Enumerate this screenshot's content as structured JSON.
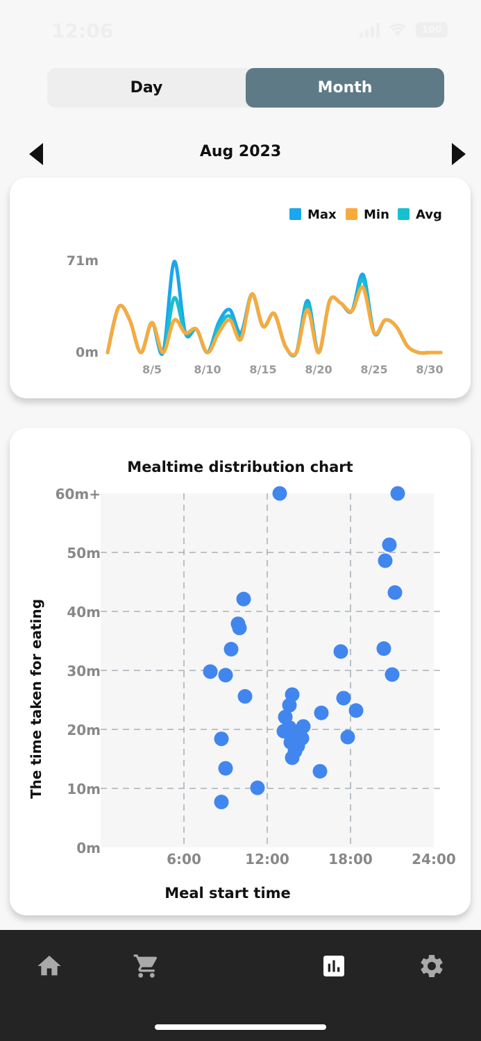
{
  "status_bar": {
    "time": "12:06",
    "battery": "100"
  },
  "tabs": [
    {
      "label": "Day",
      "active": false
    },
    {
      "label": "Month",
      "active": true
    }
  ],
  "month_nav": {
    "label": "Aug 2023"
  },
  "line_chart": {
    "chart_data": {
      "type": "line",
      "legend_position": "top-right",
      "y_ticks": [
        "71m",
        "0m"
      ],
      "ylim": [
        0,
        71
      ],
      "x_ticks": [
        {
          "day": 5,
          "label": "8/5"
        },
        {
          "day": 10,
          "label": "8/10"
        },
        {
          "day": 15,
          "label": "8/15"
        },
        {
          "day": 20,
          "label": "8/20"
        },
        {
          "day": 25,
          "label": "8/25"
        },
        {
          "day": 30,
          "label": "8/30"
        }
      ],
      "x": [
        1,
        2,
        3,
        4,
        5,
        6,
        7,
        8,
        9,
        10,
        11,
        12,
        13,
        14,
        15,
        16,
        17,
        18,
        19,
        20,
        21,
        22,
        23,
        24,
        25,
        26,
        27,
        28,
        29,
        30,
        31
      ],
      "series": [
        {
          "name": "Max",
          "color": "#1aa7ec",
          "values": [
            0,
            35,
            25,
            0,
            23,
            0,
            70,
            15,
            18,
            0,
            23,
            33,
            15,
            45,
            20,
            30,
            5,
            0,
            40,
            0,
            40,
            38,
            32,
            60,
            15,
            25,
            20,
            5,
            0,
            0,
            0
          ]
        },
        {
          "name": "Min",
          "color": "#f9aa3c",
          "values": [
            0,
            35,
            25,
            0,
            23,
            0,
            25,
            15,
            18,
            0,
            15,
            25,
            10,
            45,
            20,
            30,
            5,
            0,
            33,
            0,
            40,
            38,
            32,
            50,
            15,
            25,
            20,
            5,
            0,
            0,
            0
          ]
        },
        {
          "name": "Avg",
          "color": "#18bfd0",
          "values": [
            0,
            35,
            25,
            0,
            23,
            0,
            42,
            15,
            18,
            0,
            20,
            28,
            12,
            45,
            20,
            30,
            5,
            0,
            37,
            0,
            40,
            38,
            32,
            56,
            15,
            25,
            20,
            5,
            0,
            0,
            0
          ]
        }
      ]
    }
  },
  "scatter_chart": {
    "chart_data": {
      "type": "scatter",
      "title": "Mealtime distribution chart",
      "xlabel": "Meal start time",
      "ylabel": "The time taken for eating",
      "xlim": [
        0,
        24
      ],
      "ylim": [
        0,
        60
      ],
      "x_ticks": [
        {
          "v": 6,
          "label": "6:00"
        },
        {
          "v": 12,
          "label": "12:00"
        },
        {
          "v": 18,
          "label": "18:00"
        },
        {
          "v": 24,
          "label": "24:00"
        }
      ],
      "y_ticks": [
        {
          "v": 0,
          "label": "0m"
        },
        {
          "v": 10,
          "label": "10m"
        },
        {
          "v": 20,
          "label": "20m"
        },
        {
          "v": 30,
          "label": "30m"
        },
        {
          "v": 40,
          "label": "40m"
        },
        {
          "v": 50,
          "label": "50m"
        },
        {
          "v": 60,
          "label": "60m+"
        }
      ],
      "point_color": "#4186ef",
      "points": [
        [
          12.9,
          60
        ],
        [
          21.4,
          60
        ],
        [
          20.8,
          51.3
        ],
        [
          20.5,
          48.6
        ],
        [
          21.2,
          43.2
        ],
        [
          10.3,
          42.1
        ],
        [
          9.9,
          37.9
        ],
        [
          10.0,
          37.2
        ],
        [
          9.4,
          33.6
        ],
        [
          7.9,
          29.8
        ],
        [
          9.0,
          29.2
        ],
        [
          10.4,
          25.6
        ],
        [
          8.7,
          18.4
        ],
        [
          9.0,
          13.4
        ],
        [
          8.7,
          7.7
        ],
        [
          11.3,
          10.1
        ],
        [
          13.8,
          25.9
        ],
        [
          13.6,
          24.1
        ],
        [
          13.3,
          22.1
        ],
        [
          13.2,
          19.7
        ],
        [
          13.6,
          20.3
        ],
        [
          13.8,
          18.9
        ],
        [
          14.1,
          19.1
        ],
        [
          13.7,
          17.8
        ],
        [
          14.2,
          17.2
        ],
        [
          14.0,
          16.3
        ],
        [
          13.8,
          15.2
        ],
        [
          14.5,
          18.5
        ],
        [
          14.6,
          20.5
        ],
        [
          15.9,
          22.8
        ],
        [
          15.8,
          12.9
        ],
        [
          17.3,
          33.2
        ],
        [
          17.5,
          25.3
        ],
        [
          17.8,
          18.7
        ],
        [
          18.4,
          23.2
        ],
        [
          20.4,
          33.7
        ],
        [
          21.0,
          29.3
        ]
      ]
    }
  },
  "bottom_nav": [
    {
      "name": "home",
      "active": false
    },
    {
      "name": "cart",
      "active": false
    },
    {
      "name": "stats",
      "active": true
    },
    {
      "name": "settings",
      "active": false
    }
  ]
}
